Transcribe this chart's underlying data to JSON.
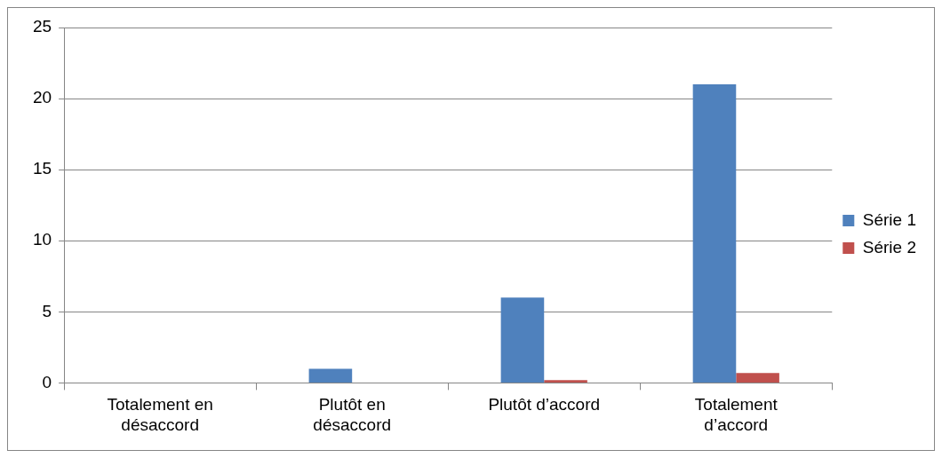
{
  "chart_data": {
    "type": "bar",
    "categories": [
      "Totalement en désaccord",
      "Plutôt en désaccord",
      "Plutôt d’accord",
      "Totalement d’accord"
    ],
    "series": [
      {
        "name": "Série 1",
        "color": "#4f81bd",
        "values": [
          0,
          1,
          6,
          21
        ]
      },
      {
        "name": "Série 2",
        "color": "#c0504d",
        "values": [
          0,
          0,
          0.2,
          0.7
        ]
      }
    ],
    "ylim": [
      0,
      25
    ],
    "yticks": [
      0,
      5,
      10,
      15,
      20,
      25
    ],
    "grid": "y",
    "legend": "right"
  }
}
